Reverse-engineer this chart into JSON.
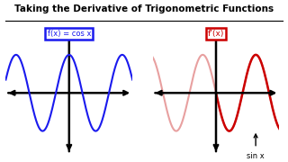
{
  "title": "Taking the Derivative of Trigonometric Functions",
  "title_fontsize": 7.5,
  "left_label": "f(x) = cos x",
  "right_label": "f’(x)",
  "annotation": "sin x",
  "left_color": "#1a1aee",
  "right_color_dark": "#cc0000",
  "right_color_light": "#e8a0a0",
  "bg_color": "#ffffff",
  "text_color": "#000000",
  "xlim": [
    -7.5,
    7.5
  ],
  "ylim": [
    -1.6,
    1.8
  ],
  "freq": 1.0
}
